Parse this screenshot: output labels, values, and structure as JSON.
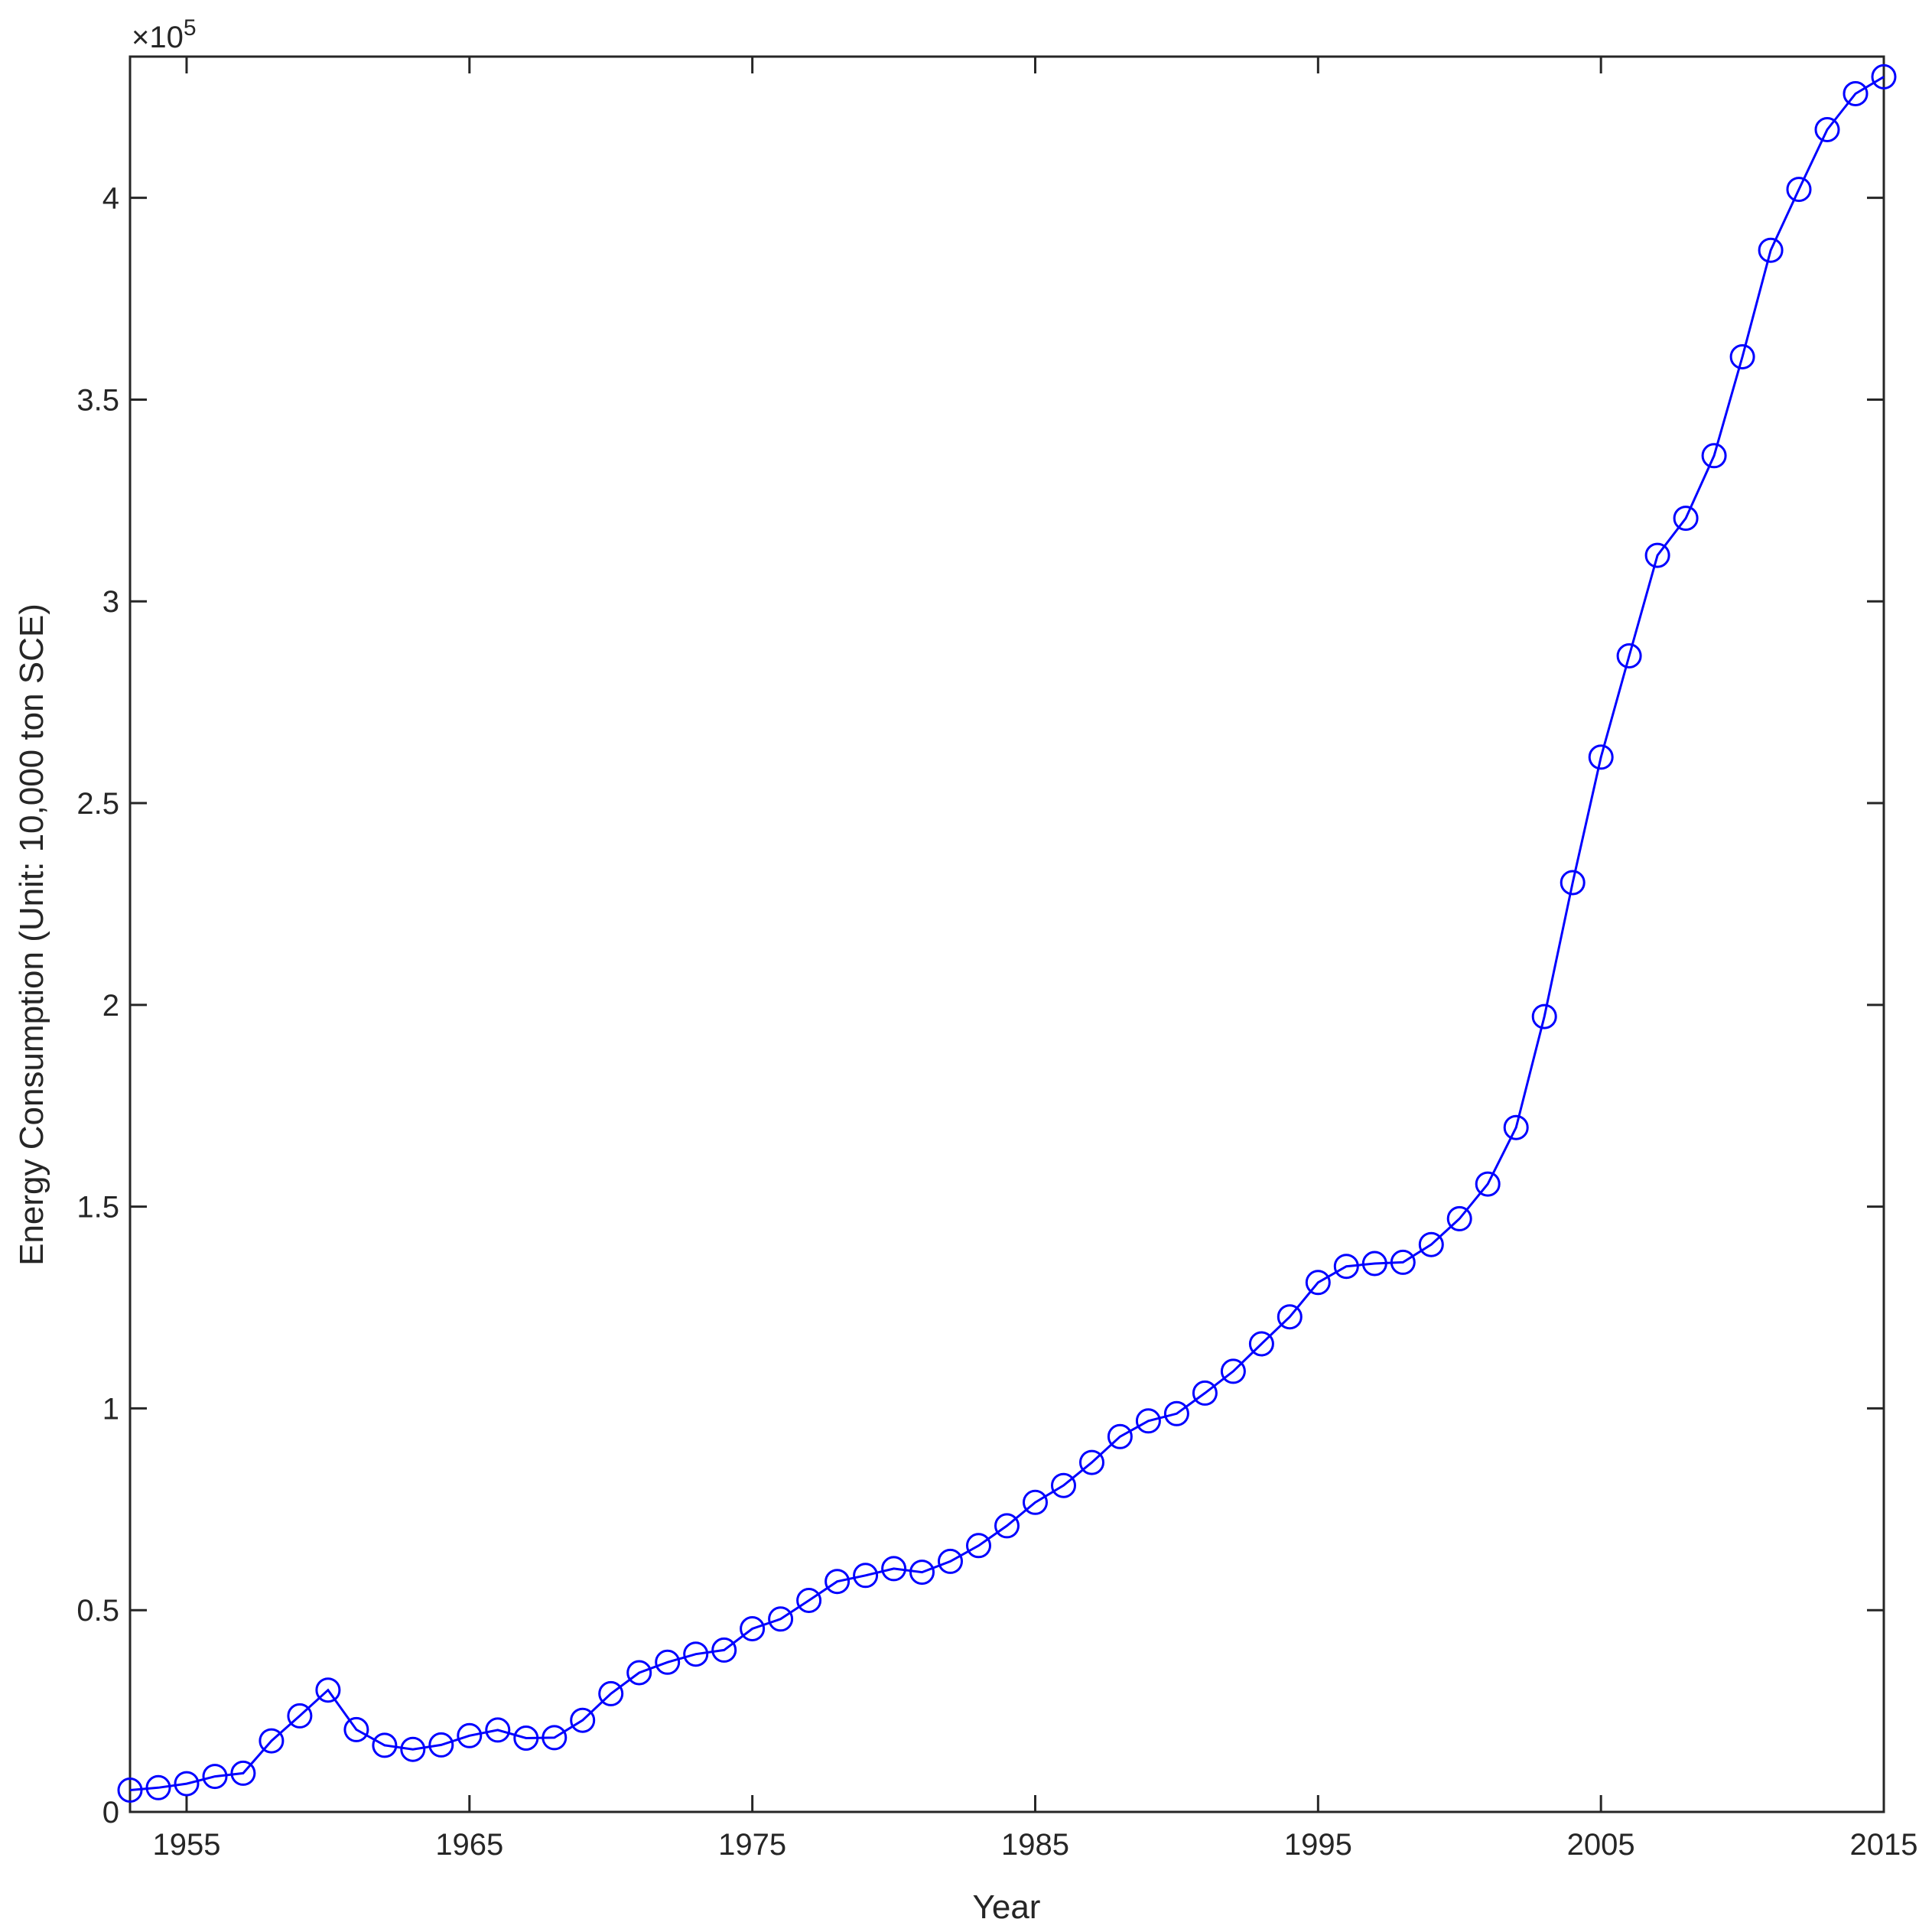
{
  "chart_data": {
    "type": "line",
    "title": "",
    "xlabel": "Year",
    "ylabel": "Energy Consumption (Unit: 10,000 ton SCE)",
    "y_multiplier_text": "×10",
    "y_multiplier_exponent": "5",
    "xlim": [
      1953,
      2015
    ],
    "ylim": [
      0,
      4.35
    ],
    "y_scale_factor": 100000,
    "xticks": [
      1955,
      1965,
      1975,
      1985,
      1995,
      2005,
      2015
    ],
    "yticks": [
      0,
      0.5,
      1,
      1.5,
      2,
      2.5,
      3,
      3.5,
      4
    ],
    "ytick_labels": [
      "0",
      "0.5",
      "1",
      "1.5",
      "2",
      "2.5",
      "3",
      "3.5",
      "4"
    ],
    "grid": false,
    "line_color": "#0000ff",
    "marker": "circle",
    "series": [
      {
        "x": [
          1953,
          1954,
          1955,
          1956,
          1957,
          1958,
          1959,
          1960,
          1961,
          1962,
          1963,
          1964,
          1965,
          1966,
          1967,
          1968,
          1969,
          1970,
          1971,
          1972,
          1973,
          1974,
          1975,
          1976,
          1977,
          1978,
          1979,
          1980,
          1981,
          1982,
          1983,
          1984,
          1985,
          1986,
          1987,
          1988,
          1989,
          1990,
          1991,
          1992,
          1993,
          1994,
          1995,
          1996,
          1997,
          1998,
          1999,
          2000,
          2001,
          2002,
          2003,
          2004,
          2005,
          2006,
          2007,
          2008,
          2009,
          2010,
          2011,
          2012,
          2013,
          2014,
          2015
        ],
        "y": [
          0.054,
          0.06,
          0.07,
          0.088,
          0.096,
          0.176,
          0.238,
          0.302,
          0.204,
          0.165,
          0.155,
          0.166,
          0.189,
          0.203,
          0.183,
          0.184,
          0.227,
          0.293,
          0.345,
          0.371,
          0.391,
          0.401,
          0.454,
          0.478,
          0.524,
          0.571,
          0.586,
          0.603,
          0.594,
          0.621,
          0.66,
          0.709,
          0.767,
          0.809,
          0.866,
          0.93,
          0.969,
          0.987,
          1.038,
          1.092,
          1.16,
          1.227,
          1.312,
          1.352,
          1.359,
          1.362,
          1.406,
          1.47,
          1.556,
          1.696,
          1.971,
          2.303,
          2.614,
          2.865,
          3.114,
          3.206,
          3.361,
          3.606,
          3.87,
          4.021,
          4.169,
          4.258,
          4.3
        ]
      }
    ]
  }
}
